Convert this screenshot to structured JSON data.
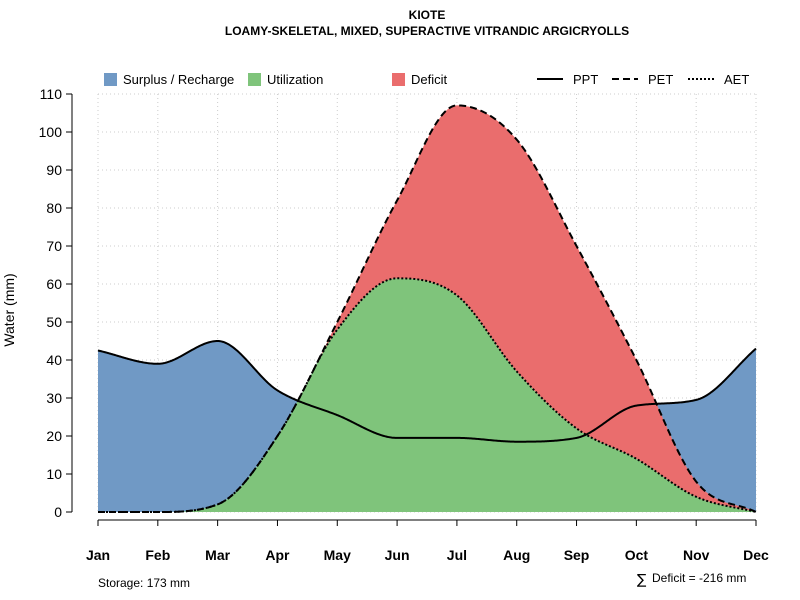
{
  "chart_data": {
    "type": "area",
    "title": "KIOTE",
    "subtitle": "LOAMY-SKELETAL, MIXED, SUPERACTIVE VITRANDIC ARGICRYOLLS",
    "ylabel": "Water (mm)",
    "xlabel": "",
    "ylim": [
      0,
      110
    ],
    "yticks": [
      "0",
      "10",
      "20",
      "30",
      "40",
      "50",
      "60",
      "70",
      "80",
      "90",
      "100",
      "110"
    ],
    "categories": [
      "Jan",
      "Feb",
      "Mar",
      "Apr",
      "May",
      "Jun",
      "Jul",
      "Aug",
      "Sep",
      "Oct",
      "Nov",
      "Dec"
    ],
    "grid": true,
    "legend_position": "top",
    "series": [
      {
        "name": "PPT",
        "style": "solid",
        "values": [
          42.5,
          39,
          45,
          32,
          25.5,
          19.5,
          19.5,
          18.5,
          19.5,
          28,
          29.5,
          43
        ]
      },
      {
        "name": "PET",
        "style": "dashed",
        "values": [
          0,
          0,
          2,
          20,
          50,
          82,
          107,
          98,
          70,
          40,
          8,
          0
        ]
      },
      {
        "name": "AET",
        "style": "dotted",
        "values": [
          0,
          0,
          2,
          20,
          48,
          61.5,
          57,
          37,
          22,
          14,
          4,
          0
        ]
      }
    ],
    "fill_legend": [
      {
        "name": "Surplus / Recharge",
        "color": "#7099c5"
      },
      {
        "name": "Utilization",
        "color": "#7fc47b"
      },
      {
        "name": "Deficit",
        "color": "#ea6d6d"
      }
    ],
    "annotations": {
      "storage": "Storage: 173 mm",
      "deficit_symbol": "∑",
      "deficit": "Deficit = -216 mm"
    }
  }
}
